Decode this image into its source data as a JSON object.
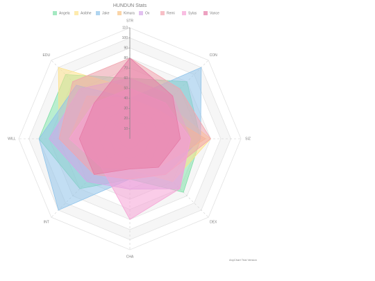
{
  "chart_data": {
    "type": "radar",
    "title": "HUNDUN Stats",
    "categories": [
      "STR",
      "CON",
      "SIZ",
      "DEX",
      "CHA",
      "INT",
      "WILL",
      "EDU"
    ],
    "ylim": [
      0,
      110
    ],
    "yticks": [
      10,
      20,
      30,
      40,
      50,
      60,
      70,
      80,
      90,
      100,
      110
    ],
    "series": [
      {
        "name": "Angela",
        "color": "#7fe0a8",
        "values": [
          60,
          80,
          70,
          75,
          40,
          70,
          90,
          90
        ]
      },
      {
        "name": "Aoibhe",
        "color": "#fde28a",
        "values": [
          50,
          50,
          80,
          60,
          30,
          50,
          70,
          100
        ]
      },
      {
        "name": "Jake",
        "color": "#8fc3ea",
        "values": [
          40,
          100,
          70,
          50,
          40,
          100,
          90,
          75
        ]
      },
      {
        "name": "Kimura",
        "color": "#f8c383",
        "values": [
          40,
          40,
          75,
          40,
          30,
          40,
          60,
          60
        ]
      },
      {
        "name": "Ox",
        "color": "#d6a6ea",
        "values": [
          60,
          60,
          60,
          70,
          50,
          60,
          80,
          70
        ]
      },
      {
        "name": "Remi",
        "color": "#f3a4ae",
        "values": [
          80,
          70,
          80,
          50,
          40,
          50,
          70,
          80
        ]
      },
      {
        "name": "Sylas",
        "color": "#f6a2d6",
        "values": [
          50,
          50,
          60,
          70,
          80,
          40,
          60,
          50
        ]
      },
      {
        "name": "Vance",
        "color": "#e57ba6",
        "values": [
          80,
          60,
          50,
          40,
          30,
          50,
          50,
          50
        ]
      }
    ],
    "credits": "AnyChart Trial Version"
  }
}
